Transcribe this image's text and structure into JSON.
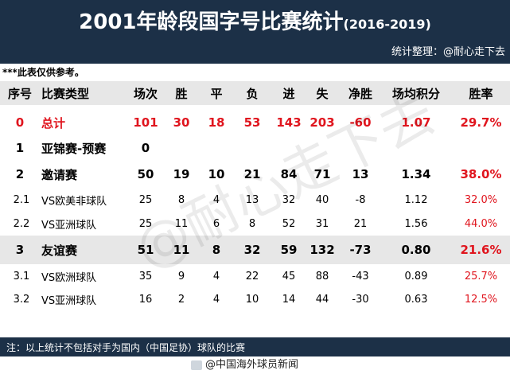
{
  "title": {
    "main": "2001年龄段国字号比赛统计",
    "range": "(2016-2019)"
  },
  "compiler": "统计整理：@耐心走下去",
  "disclaimer": "***此表仅供参考。",
  "headers": [
    "序号",
    "比赛类型",
    "场次",
    "胜",
    "平",
    "负",
    "进",
    "失",
    "净胜",
    "场均积分",
    "胜率"
  ],
  "rows": [
    {
      "kind": "total",
      "no": "0",
      "type": "总计",
      "played": "101",
      "win": "30",
      "draw": "18",
      "loss": "53",
      "gf": "143",
      "ga": "203",
      "gd": "-60",
      "ppg": "1.07",
      "rate": "29.7%"
    },
    {
      "kind": "big",
      "no": "1",
      "type": "亚锦赛-预赛",
      "played": "0",
      "win": "",
      "draw": "",
      "loss": "",
      "gf": "",
      "ga": "",
      "gd": "",
      "ppg": "",
      "rate": ""
    },
    {
      "kind": "big",
      "no": "2",
      "type": "邀请赛",
      "played": "50",
      "win": "19",
      "draw": "10",
      "loss": "21",
      "gf": "84",
      "ga": "71",
      "gd": "13",
      "ppg": "1.34",
      "rate": "38.0%"
    },
    {
      "kind": "small",
      "no": "2.1",
      "type": "VS欧美非球队",
      "played": "25",
      "win": "8",
      "draw": "4",
      "loss": "13",
      "gf": "32",
      "ga": "40",
      "gd": "-8",
      "ppg": "1.12",
      "rate": "32.0%"
    },
    {
      "kind": "small",
      "no": "2.2",
      "type": "VS亚洲球队",
      "played": "25",
      "win": "11",
      "draw": "6",
      "loss": "8",
      "gf": "52",
      "ga": "31",
      "gd": "21",
      "ppg": "1.56",
      "rate": "44.0%"
    },
    {
      "kind": "big",
      "no": "3",
      "type": "友谊赛",
      "played": "51",
      "win": "11",
      "draw": "8",
      "loss": "32",
      "gf": "59",
      "ga": "132",
      "gd": "-73",
      "ppg": "0.80",
      "rate": "21.6%"
    },
    {
      "kind": "small",
      "no": "3.1",
      "type": "VS欧洲球队",
      "played": "35",
      "win": "9",
      "draw": "4",
      "loss": "22",
      "gf": "45",
      "ga": "88",
      "gd": "-43",
      "ppg": "0.89",
      "rate": "25.7%"
    },
    {
      "kind": "small",
      "no": "3.2",
      "type": "VS亚洲球队",
      "played": "16",
      "win": "2",
      "draw": "4",
      "loss": "10",
      "gf": "14",
      "ga": "44",
      "gd": "-30",
      "ppg": "0.63",
      "rate": "12.5%"
    }
  ],
  "footnote": "注：以上统计不包括对手为国内（中国足协）球队的比赛",
  "credit": "@中国海外球员新闻",
  "watermark": "@耐心走下去",
  "colors": {
    "header_bg": "#1c3047",
    "highlight_bg": "#e7e7e7",
    "red": "#e0151e"
  }
}
